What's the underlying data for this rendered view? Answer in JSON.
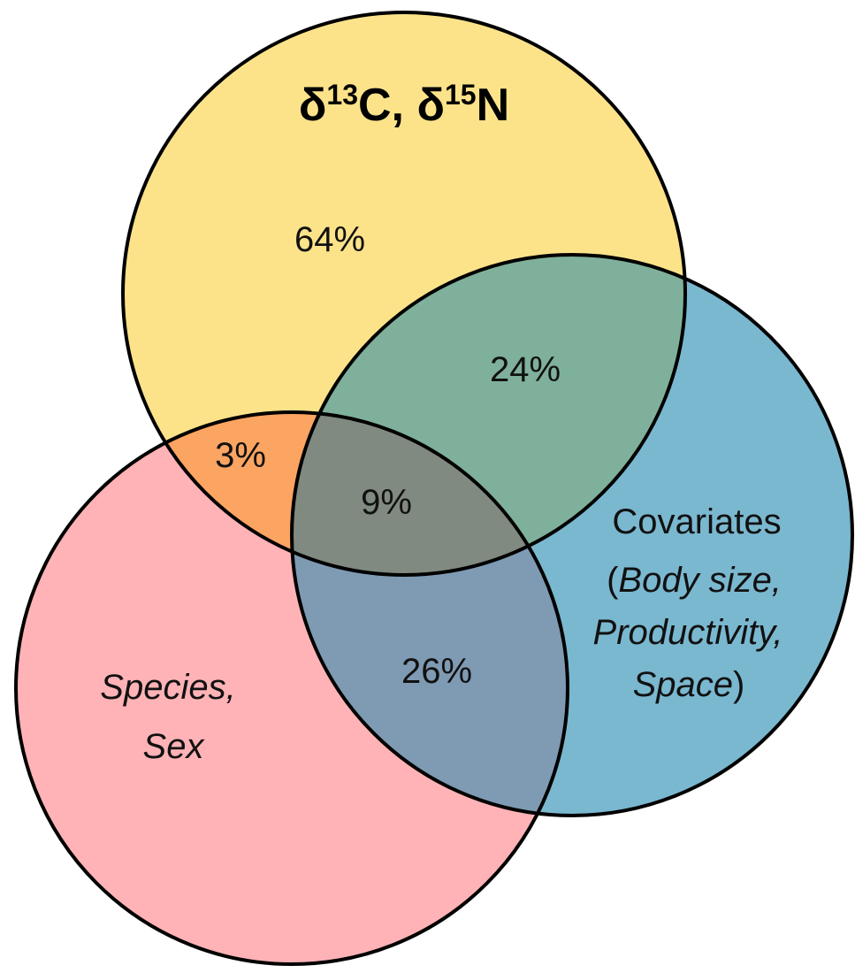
{
  "sets": {
    "isotopes": {
      "delta_symbol": "δ",
      "mass_c": "13",
      "element_c": "C, ",
      "mass_n": "15",
      "element_n": "N",
      "color": "#FCE38A"
    },
    "species_sex": {
      "line1": "Species,",
      "line2": "Sex",
      "color": "#FFB3B6"
    },
    "covariates": {
      "line1": "Covariates",
      "line2_open": "(",
      "line2_italic": "Body size,",
      "line3_italic": "Productivity,",
      "line4_italic": "Space",
      "line4_close": ")",
      "color": "#7AB8D0"
    }
  },
  "regions": {
    "isotopes_only": "64%",
    "isotopes_covariates": "24%",
    "isotopes_species": "3%",
    "all_three": "9%",
    "species_covariates": "26%"
  },
  "colors": {
    "outline": "#000000",
    "isotopes_species": "#FCA462",
    "isotopes_covariates": "#7FB09B",
    "species_covariates": "#7F9AB3",
    "all_three": "#808A80"
  }
}
